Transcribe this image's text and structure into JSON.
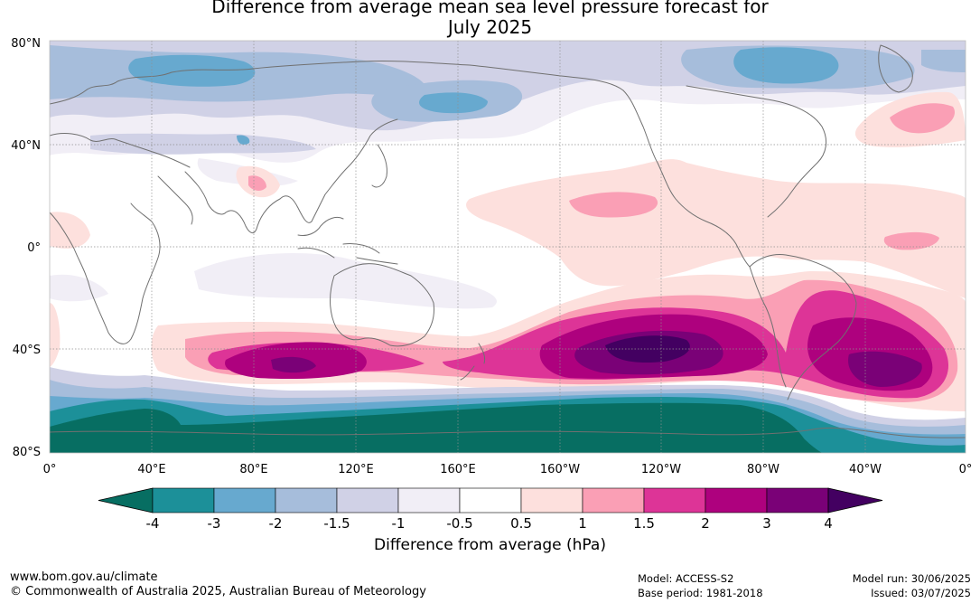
{
  "title_line1": "Difference from average mean sea level pressure forecast for",
  "title_line2": "July 2025",
  "lat_labels": [
    "80°N",
    "40°N",
    "0°",
    "40°S",
    "80°S"
  ],
  "lon_labels": [
    "0°",
    "40°E",
    "80°E",
    "120°E",
    "160°E",
    "160°W",
    "120°W",
    "80°W",
    "40°W",
    "0°"
  ],
  "colorbar": {
    "ticks": [
      "-4",
      "-3",
      "-2",
      "-1.5",
      "-1",
      "-0.5",
      "0.5",
      "1",
      "1.5",
      "2",
      "3",
      "4"
    ],
    "below_color": "#076e62",
    "above_color": "#430061",
    "colors": [
      "#1c9099",
      "#67a9cf",
      "#a6bddb",
      "#d0d1e6",
      "#f1eef6",
      "#ffffff",
      "#fde0dd",
      "#fa9fb5",
      "#dd3497",
      "#ae017e",
      "#7a0177"
    ],
    "label": "Difference from average (hPa)"
  },
  "footer": {
    "website": "www.bom.gov.au/climate",
    "copyright": "© Commonwealth of Australia 2025, Australian Bureau of Meteorology",
    "model": "Model: ACCESS-S2",
    "base_period": "Base period: 1981-2018",
    "model_run": "Model run: 30/06/2025",
    "issued": "Issued: 03/07/2025"
  },
  "colors": {
    "coast": "#707070",
    "grid": "#909090"
  }
}
